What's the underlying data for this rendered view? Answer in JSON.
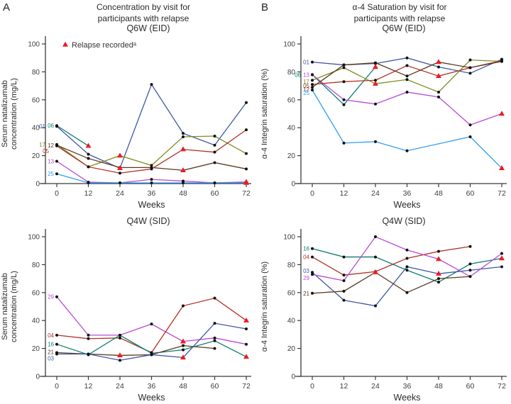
{
  "panels": [
    {
      "label": "A",
      "title": "Concentration by visit for\nparticipants with relapse"
    },
    {
      "label": "B",
      "title": "α-4 Saturation by visit for\nparticipants with relapse"
    }
  ],
  "style": {
    "axis_color": "#3a3a3a",
    "tick_text_color": "#3d3d3d",
    "marker_color": "#101010",
    "relapse_color": "#ec1c24"
  },
  "chart_data": [
    {
      "id": "concentration-q6w-eid",
      "type": "line",
      "title": "Q6W (EID)",
      "xlabel": "Weeks",
      "ylabel": "Serum natalizumab\nconcentration (mg/L)",
      "x": [
        0,
        12,
        24,
        36,
        48,
        60,
        72
      ],
      "ylim": [
        0,
        100
      ],
      "yticks": [
        0,
        20,
        40,
        60,
        80,
        100
      ],
      "grid": false,
      "legend": {
        "show": true,
        "label": "Relapse recordedᵃ"
      },
      "series": [
        {
          "name": "01",
          "color": "#3e57a7",
          "values": [
            41,
            21,
            11,
            71,
            36,
            27.5,
            58
          ],
          "relapse_weeks": [
            24
          ],
          "label_dx": -12
        },
        {
          "name": "06",
          "color": "#0c7d70",
          "values": [
            41.5,
            27,
            null,
            null,
            null,
            null,
            null
          ],
          "relapse_weeks": [
            12
          ]
        },
        {
          "name": "17",
          "color": "#7e8e20",
          "values": [
            28,
            12,
            20,
            13,
            33.5,
            34,
            21.5
          ],
          "relapse_weeks": [
            24
          ],
          "label_dx": -12
        },
        {
          "name": "12",
          "color": "#5b3a21",
          "values": [
            27.5,
            18,
            11.5,
            11.5,
            9.5,
            15,
            10.5
          ],
          "relapse_weeks": [
            48
          ]
        },
        {
          "name": "05",
          "color": "#b13226",
          "values": [
            27,
            12,
            7.5,
            10.5,
            24.5,
            22.5,
            38.5
          ],
          "relapse_weeks": [
            48
          ],
          "label_dx": -7,
          "label_dy": 7
        },
        {
          "name": "13",
          "color": "#ba49d6",
          "values": [
            16,
            1,
            0.5,
            3,
            1.8,
            0.5,
            1.2
          ],
          "relapse_weeks": [
            72
          ]
        },
        {
          "name": "25",
          "color": "#2f9df5",
          "values": [
            7,
            0.5,
            0.5,
            0.5,
            0.5,
            0.5,
            0.5
          ],
          "relapse_weeks": [
            72
          ]
        }
      ]
    },
    {
      "id": "saturation-q6w-eid",
      "type": "line",
      "title": "Q6W (EID)",
      "xlabel": "Weeks",
      "ylabel": "α-4 Integrin saturation (%)",
      "x": [
        0,
        12,
        24,
        36,
        48,
        60,
        72
      ],
      "ylim": [
        0,
        100
      ],
      "yticks": [
        0,
        20,
        40,
        60,
        80,
        100
      ],
      "grid": false,
      "series": [
        {
          "name": "01",
          "color": "#3e57a7",
          "values": [
            87,
            85,
            86,
            90,
            83.5,
            79,
            89
          ],
          "relapse_weeks": []
        },
        {
          "name": "06",
          "color": "#0c7d70",
          "values": [
            78,
            56.5,
            83.5,
            null,
            null,
            null,
            null
          ],
          "relapse_weeks": [
            24
          ],
          "label_dx": -12
        },
        {
          "name": "13",
          "color": "#ba49d6",
          "values": [
            78,
            60,
            57,
            65.5,
            62,
            42,
            50
          ],
          "relapse_weeks": [
            72
          ]
        },
        {
          "name": "17",
          "color": "#7e8e20",
          "values": [
            74,
            83,
            71.5,
            74.5,
            65.5,
            88.5,
            87.5
          ],
          "relapse_weeks": [
            24
          ],
          "label_dy": 2
        },
        {
          "name": "05",
          "color": "#b13226",
          "values": [
            71,
            73,
            74,
            84.5,
            77,
            83,
            88
          ],
          "relapse_weeks": [
            48
          ],
          "label_dy": 2
        },
        {
          "name": "12",
          "color": "#5b3a21",
          "values": [
            69,
            85,
            86.5,
            77,
            87,
            83,
            87.5
          ],
          "relapse_weeks": [
            48
          ],
          "label_dy": 3
        },
        {
          "name": "25",
          "color": "#2f9df5",
          "values": [
            67,
            29,
            30,
            23.5,
            null,
            33.5,
            11
          ],
          "relapse_weeks": [
            72
          ],
          "label_dy": 4
        }
      ]
    },
    {
      "id": "concentration-q4w-sid",
      "type": "line",
      "title": "Q4W (SID)",
      "xlabel": "Weeks",
      "ylabel": "Serum natalizumab\nconcentration (mg/L)",
      "x": [
        0,
        12,
        24,
        36,
        48,
        60,
        72
      ],
      "ylim": [
        0,
        100
      ],
      "yticks": [
        0,
        20,
        40,
        60,
        80,
        100
      ],
      "grid": false,
      "series": [
        {
          "name": "29",
          "color": "#ba49d6",
          "values": [
            57,
            29.5,
            29.5,
            37.5,
            25,
            27.5,
            23
          ],
          "relapse_weeks": [
            48
          ]
        },
        {
          "name": "04",
          "color": "#b13226",
          "values": [
            29.5,
            27,
            27.5,
            17,
            50.5,
            56,
            40
          ],
          "relapse_weeks": [
            72
          ]
        },
        {
          "name": "16",
          "color": "#0c7d70",
          "values": [
            23,
            15.5,
            29.5,
            16.5,
            19,
            25.5,
            14
          ],
          "relapse_weeks": [
            72
          ]
        },
        {
          "name": "21",
          "color": "#5b3a21",
          "values": [
            17,
            16,
            15,
            15.5,
            22,
            20,
            null
          ],
          "relapse_weeks": [
            24
          ],
          "label_dy": -1
        },
        {
          "name": "03",
          "color": "#3e57a7",
          "values": [
            16,
            16,
            11.5,
            15.5,
            13.5,
            38,
            34
          ],
          "relapse_weeks": [
            48
          ],
          "label_dy": 6
        }
      ]
    },
    {
      "id": "saturation-q4w-sid",
      "type": "line",
      "title": "Q4W (SID)",
      "xlabel": "Weeks",
      "ylabel": "α-4 Integrin saturation (%)",
      "x": [
        0,
        12,
        24,
        36,
        48,
        60,
        72
      ],
      "ylim": [
        0,
        100
      ],
      "yticks": [
        0,
        20,
        40,
        60,
        80,
        100
      ],
      "grid": false,
      "series": [
        {
          "name": "16",
          "color": "#0c7d70",
          "values": [
            91.5,
            85.5,
            85.5,
            76,
            67.5,
            80.5,
            84.5
          ],
          "relapse_weeks": [
            72
          ]
        },
        {
          "name": "04",
          "color": "#b13226",
          "values": [
            85.5,
            72.5,
            75,
            84.5,
            89.5,
            93,
            null
          ],
          "relapse_weeks": []
        },
        {
          "name": "03",
          "color": "#3e57a7",
          "values": [
            74.5,
            54.5,
            50.5,
            78.5,
            73.5,
            76,
            78.5
          ],
          "relapse_weeks": [
            48
          ],
          "label_dy": -2
        },
        {
          "name": "29",
          "color": "#ba49d6",
          "values": [
            73,
            68.5,
            100,
            90.5,
            84,
            71.5,
            88
          ],
          "relapse_weeks": [
            48
          ],
          "label_dy": 5
        },
        {
          "name": "21",
          "color": "#5b3a21",
          "values": [
            59.5,
            61,
            74.5,
            60,
            70,
            71.5,
            null
          ],
          "relapse_weeks": [
            24
          ]
        }
      ]
    }
  ]
}
